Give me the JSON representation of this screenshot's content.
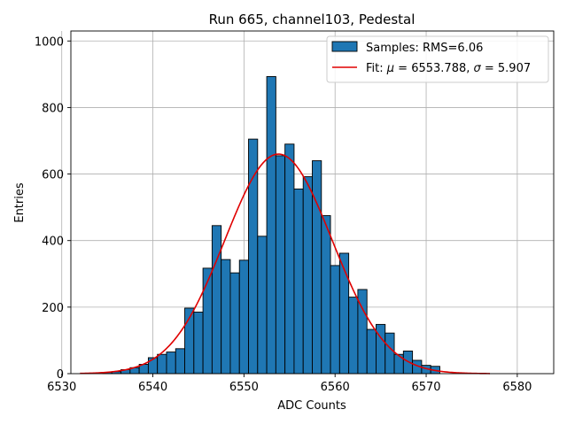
{
  "chart_data": {
    "type": "bar",
    "title": "Run 665, channel103, Pedestal",
    "xlabel": "ADC Counts",
    "ylabel": "Entries",
    "xlim": [
      6531,
      6584
    ],
    "ylim": [
      0,
      1030
    ],
    "xticks": [
      6530,
      6540,
      6550,
      6560,
      6570,
      6580
    ],
    "yticks": [
      0,
      200,
      400,
      600,
      800,
      1000
    ],
    "grid": true,
    "legend_position": "top-right",
    "bin_width": 1,
    "histogram": {
      "name": "Samples: RMS=6.06",
      "color": "#1f77b4",
      "edge_color": "#000000",
      "x": [
        6535,
        6536,
        6537,
        6538,
        6539,
        6540,
        6541,
        6542,
        6543,
        6544,
        6545,
        6546,
        6547,
        6548,
        6549,
        6550,
        6551,
        6552,
        6553,
        6554,
        6555,
        6556,
        6557,
        6558,
        6559,
        6560,
        6561,
        6562,
        6563,
        6564,
        6565,
        6566,
        6567,
        6568,
        6569,
        6570,
        6571
      ],
      "values": [
        4,
        6,
        12,
        18,
        28,
        48,
        58,
        65,
        75,
        197,
        185,
        317,
        445,
        343,
        303,
        341,
        705,
        413,
        893,
        655,
        690,
        555,
        592,
        640,
        475,
        325,
        362,
        230,
        253,
        133,
        148,
        122,
        58,
        68,
        40,
        25,
        22
      ]
    },
    "fit": {
      "name": "Fit: μ = 6553.788, σ = 5.907",
      "label_prefix": "Fit: ",
      "mu_symbol": "μ",
      "mu_text": " = 6553.788, ",
      "sigma_symbol": "σ",
      "sigma_text": " = 5.907",
      "color": "#e00000",
      "mu": 6553.788,
      "sigma": 5.907,
      "amplitude": 660,
      "x_range": [
        6532,
        6577
      ]
    }
  }
}
